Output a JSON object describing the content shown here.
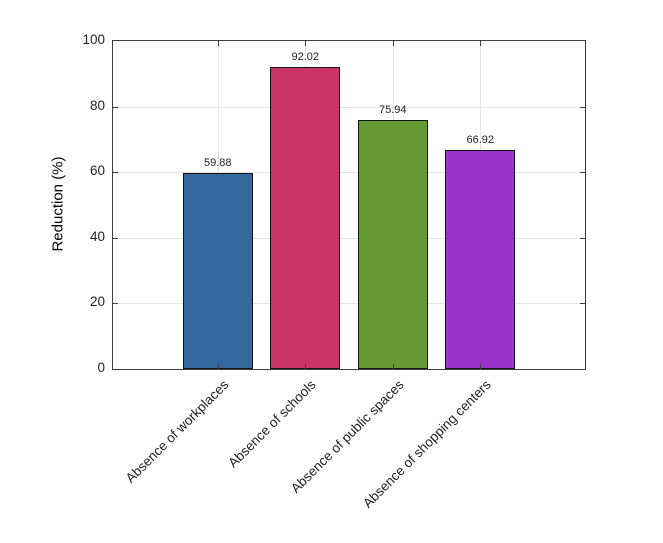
{
  "figure": {
    "background": "#ffffff"
  },
  "chart_data": {
    "type": "bar",
    "title": "",
    "xlabel": "",
    "ylabel": "Reduction (%)",
    "categories": [
      "Absence of workplaces",
      "Absence of schools",
      "Absence of public spaces",
      "Absence of shopping centers"
    ],
    "values": [
      59.88,
      92.02,
      75.94,
      66.92
    ],
    "value_labels": [
      "59.88",
      "92.02",
      "75.94",
      "66.92"
    ],
    "bar_colors": [
      "#33689D",
      "#CC3366",
      "#669933",
      "#9933CC"
    ],
    "bar_edge_color": "#141414",
    "ylim": [
      0,
      100
    ],
    "yticks": [
      0,
      20,
      40,
      60,
      80,
      100
    ],
    "x_tick_rotation_deg": 45,
    "grid": true,
    "grid_color": "#e4e4e4",
    "axis_color": "#3c3c3c",
    "text_color": "#1f1f1f",
    "legend": null
  }
}
